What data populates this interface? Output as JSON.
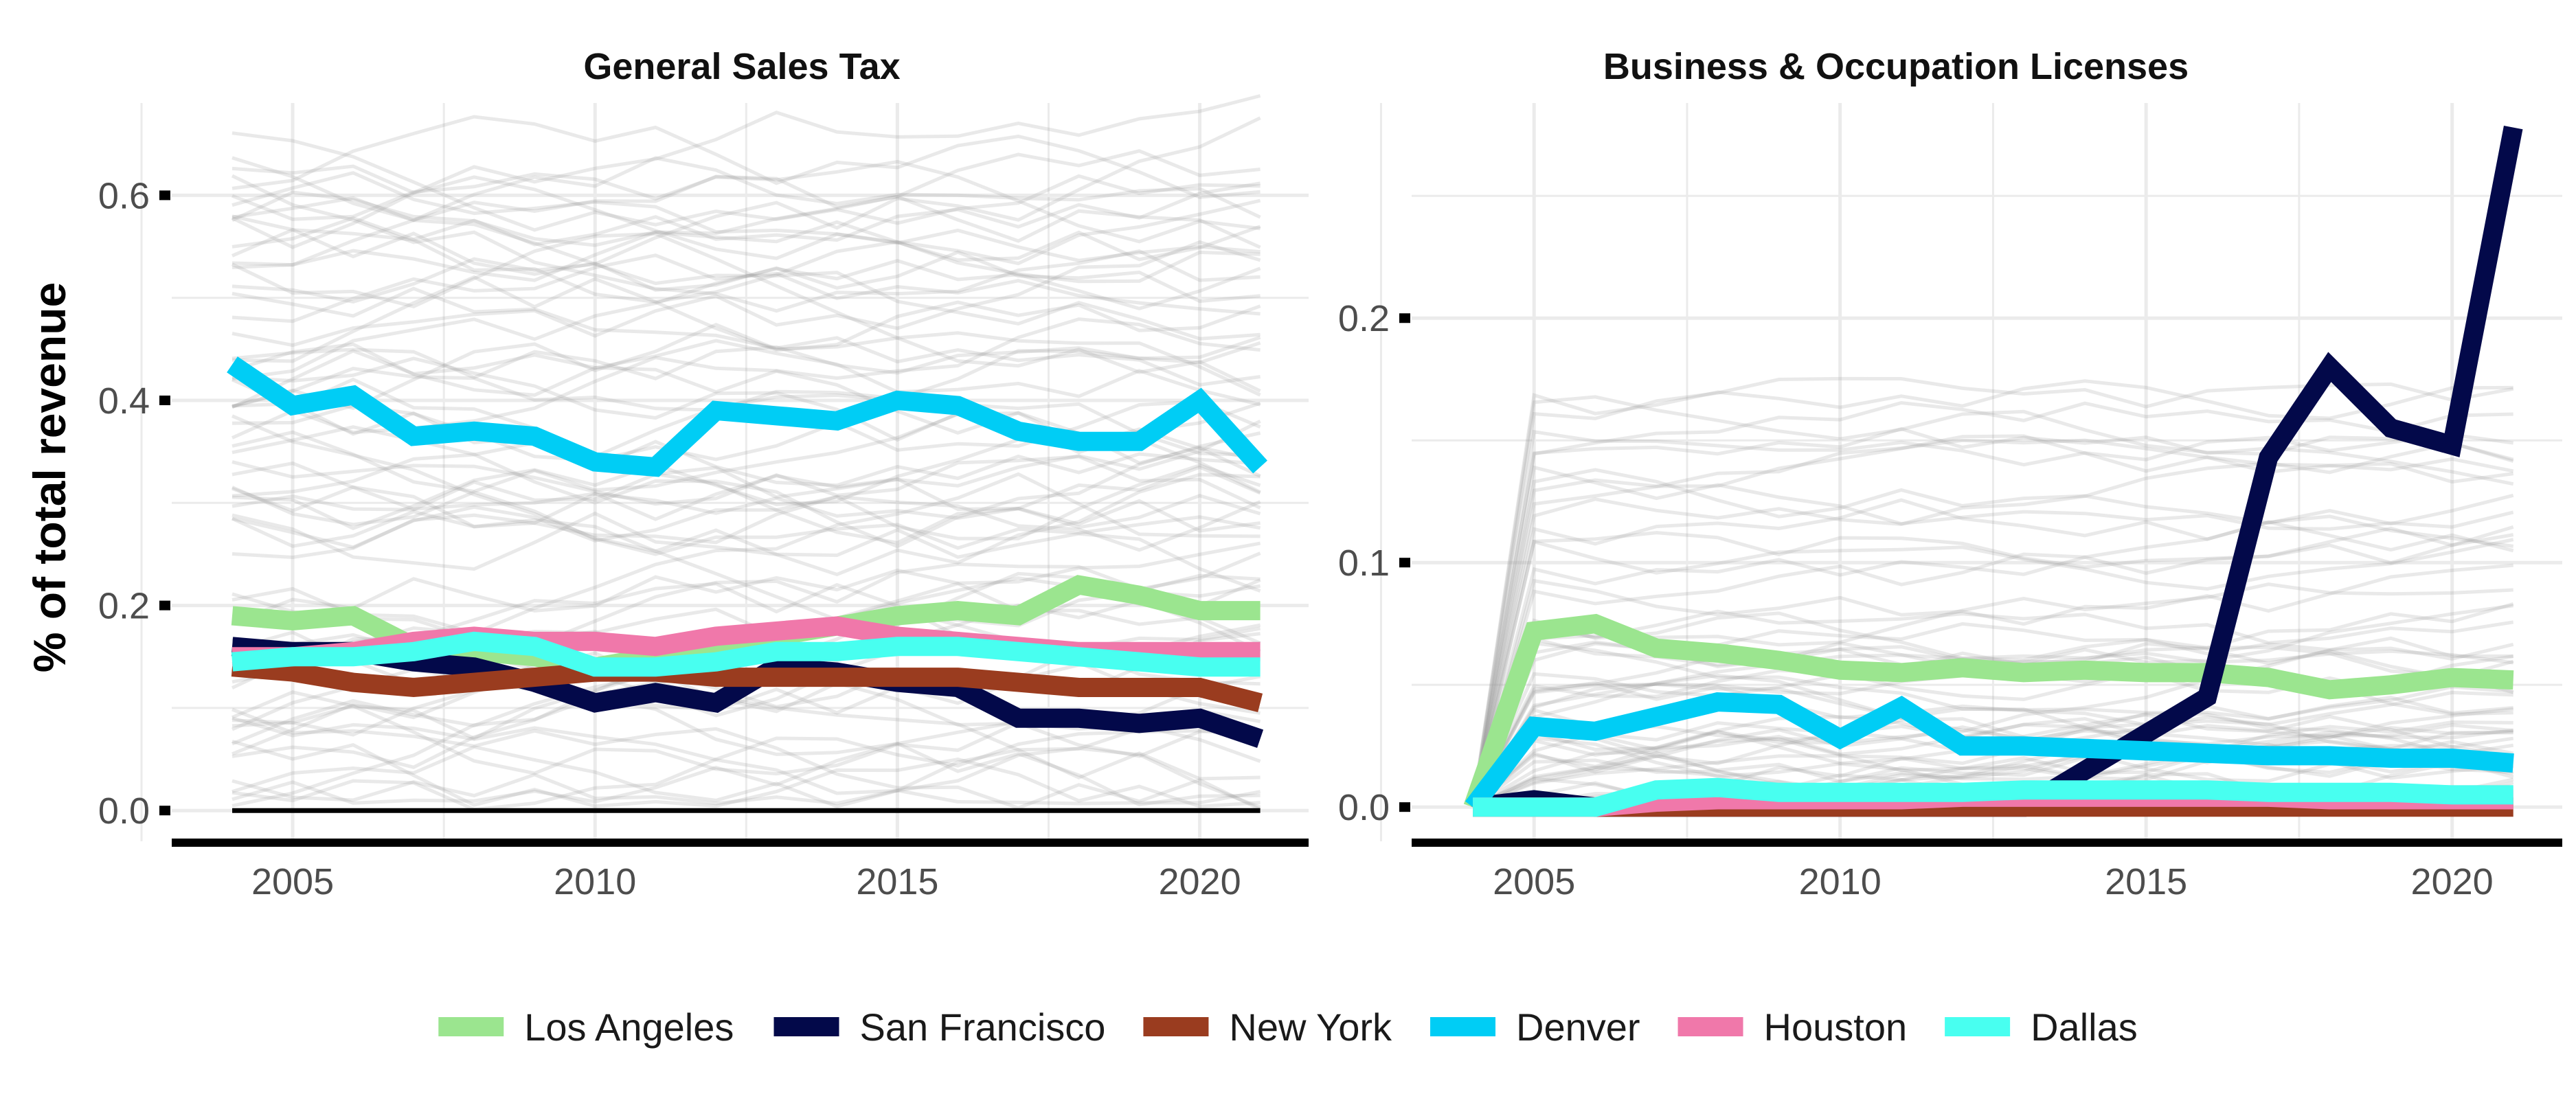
{
  "chart_data": [
    {
      "type": "line",
      "title": "General Sales Tax",
      "ylabel": "% of total revenue",
      "xlabel": "",
      "x": [
        2004,
        2005,
        2006,
        2007,
        2008,
        2009,
        2010,
        2011,
        2012,
        2013,
        2014,
        2015,
        2016,
        2017,
        2018,
        2019,
        2020,
        2021
      ],
      "xlim": [
        2003,
        2021.8
      ],
      "ylim": [
        -0.03,
        0.69
      ],
      "yticks": [
        0.0,
        0.2,
        0.4,
        0.6
      ],
      "ytick_labels": [
        "0.0",
        "0.2",
        "0.4",
        "0.6"
      ],
      "xticks": [
        2005,
        2010,
        2015,
        2020
      ],
      "xtick_labels": [
        "2005",
        "2010",
        "2015",
        "2020"
      ],
      "grid": true,
      "background_lines": "many thin grey lines for other cities",
      "series": [
        {
          "name": "Los Angeles",
          "values": [
            0.19,
            0.185,
            0.19,
            0.16,
            0.155,
            0.15,
            0.14,
            0.15,
            0.16,
            0.17,
            0.18,
            0.19,
            0.195,
            0.19,
            0.22,
            0.21,
            0.195,
            0.195
          ]
        },
        {
          "name": "San Francisco",
          "values": [
            0.16,
            0.155,
            0.155,
            0.145,
            0.14,
            0.125,
            0.105,
            0.115,
            0.105,
            0.14,
            0.135,
            0.125,
            0.12,
            0.09,
            0.09,
            0.085,
            0.09,
            0.07
          ]
        },
        {
          "name": "New York",
          "values": [
            0.14,
            0.135,
            0.125,
            0.12,
            0.125,
            0.13,
            0.135,
            0.135,
            0.13,
            0.13,
            0.13,
            0.13,
            0.13,
            0.125,
            0.12,
            0.12,
            0.12,
            0.105
          ]
        },
        {
          "name": "Denver",
          "values": [
            0.435,
            0.395,
            0.405,
            0.365,
            0.37,
            0.365,
            0.34,
            0.335,
            0.39,
            0.385,
            0.38,
            0.4,
            0.395,
            0.37,
            0.36,
            0.36,
            0.4,
            0.335
          ]
        },
        {
          "name": "Houston",
          "values": [
            0.15,
            0.15,
            0.155,
            0.165,
            0.17,
            0.165,
            0.165,
            0.16,
            0.17,
            0.175,
            0.18,
            0.17,
            0.165,
            0.16,
            0.155,
            0.155,
            0.155,
            0.155
          ]
        },
        {
          "name": "Dallas",
          "values": [
            0.145,
            0.15,
            0.15,
            0.155,
            0.165,
            0.16,
            0.14,
            0.14,
            0.145,
            0.155,
            0.155,
            0.16,
            0.16,
            0.155,
            0.15,
            0.145,
            0.14,
            0.14
          ]
        }
      ]
    },
    {
      "type": "line",
      "title": "Business & Occupation Licenses",
      "ylabel": "",
      "xlabel": "",
      "x": [
        2004,
        2005,
        2006,
        2007,
        2008,
        2009,
        2010,
        2011,
        2012,
        2013,
        2014,
        2015,
        2016,
        2017,
        2018,
        2019,
        2020,
        2021
      ],
      "xlim": [
        2003,
        2021.8
      ],
      "ylim": [
        -0.014,
        0.288
      ],
      "yticks": [
        0.0,
        0.1,
        0.2
      ],
      "ytick_labels": [
        "0.0",
        "0.1",
        "0.2"
      ],
      "xticks": [
        2005,
        2010,
        2015,
        2020
      ],
      "xtick_labels": [
        "2005",
        "2010",
        "2015",
        "2020"
      ],
      "grid": true,
      "background_lines": "many thin grey lines for other cities",
      "series": [
        {
          "name": "Los Angeles",
          "values": [
            0.0,
            0.072,
            0.075,
            0.065,
            0.063,
            0.06,
            0.056,
            0.055,
            0.057,
            0.055,
            0.056,
            0.055,
            0.055,
            0.053,
            0.048,
            0.05,
            0.053,
            0.052
          ]
        },
        {
          "name": "San Francisco",
          "values": [
            0.0,
            0.003,
            0.0,
            0.0,
            0.0,
            0.0,
            0.0,
            0.0,
            0.0,
            0.0,
            0.015,
            0.03,
            0.045,
            0.143,
            0.18,
            0.155,
            0.148,
            0.278
          ]
        },
        {
          "name": "New York",
          "values": [
            0.0,
            0.0,
            0.0,
            0.0,
            0.0,
            0.0,
            0.0,
            0.0,
            0.0,
            0.0,
            0.0,
            0.0,
            0.0,
            0.0,
            0.0,
            0.0,
            0.0,
            0.0
          ]
        },
        {
          "name": "Denver",
          "values": [
            0.0,
            0.033,
            0.031,
            0.037,
            0.043,
            0.042,
            0.028,
            0.041,
            0.025,
            0.025,
            0.024,
            0.023,
            0.022,
            0.021,
            0.021,
            0.02,
            0.02,
            0.018
          ]
        },
        {
          "name": "Houston",
          "values": [
            0.0,
            0.0,
            0.0,
            0.002,
            0.003,
            0.003,
            0.003,
            0.003,
            0.004,
            0.004,
            0.004,
            0.004,
            0.004,
            0.004,
            0.003,
            0.003,
            0.003,
            0.003
          ]
        },
        {
          "name": "Dallas",
          "values": [
            0.0,
            0.0,
            0.0,
            0.007,
            0.008,
            0.006,
            0.006,
            0.006,
            0.006,
            0.007,
            0.007,
            0.007,
            0.007,
            0.006,
            0.006,
            0.006,
            0.005,
            0.005
          ]
        }
      ]
    }
  ],
  "legend": {
    "position": "bottom",
    "items": [
      {
        "label": "Los Angeles",
        "color": "#9be58f"
      },
      {
        "label": "San Francisco",
        "color": "#03094a"
      },
      {
        "label": "New York",
        "color": "#9a3c1f"
      },
      {
        "label": "Denver",
        "color": "#00cdf5"
      },
      {
        "label": "Houston",
        "color": "#f078aa"
      },
      {
        "label": "Dallas",
        "color": "#48fff0"
      }
    ]
  },
  "colors": {
    "Los Angeles": "#9be58f",
    "San Francisco": "#03094a",
    "New York": "#9a3c1f",
    "Denver": "#00cdf5",
    "Houston": "#f078aa",
    "Dallas": "#48fff0",
    "background_lines": "#9a9a9a",
    "grid": "#ebebeb"
  }
}
